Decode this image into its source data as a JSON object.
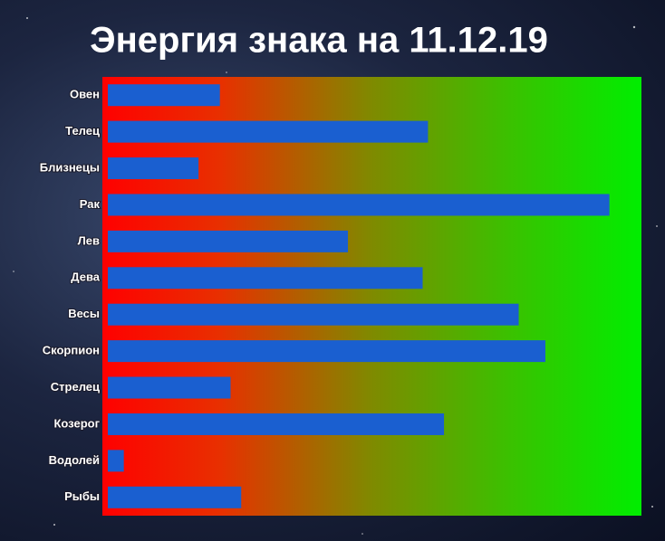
{
  "chart_data": {
    "type": "bar",
    "orientation": "horizontal",
    "title": "Энергия знака на 11.12.19",
    "categories": [
      "Овен",
      "Телец",
      "Близнецы",
      "Рак",
      "Лев",
      "Дева",
      "Весы",
      "Скорпион",
      "Стрелец",
      "Козерог",
      "Водолей",
      "Рыбы"
    ],
    "values": [
      21,
      60,
      17,
      94,
      45,
      59,
      77,
      82,
      23,
      63,
      3,
      25
    ],
    "color": "#1a5fd0",
    "xlim": [
      0,
      100
    ]
  }
}
